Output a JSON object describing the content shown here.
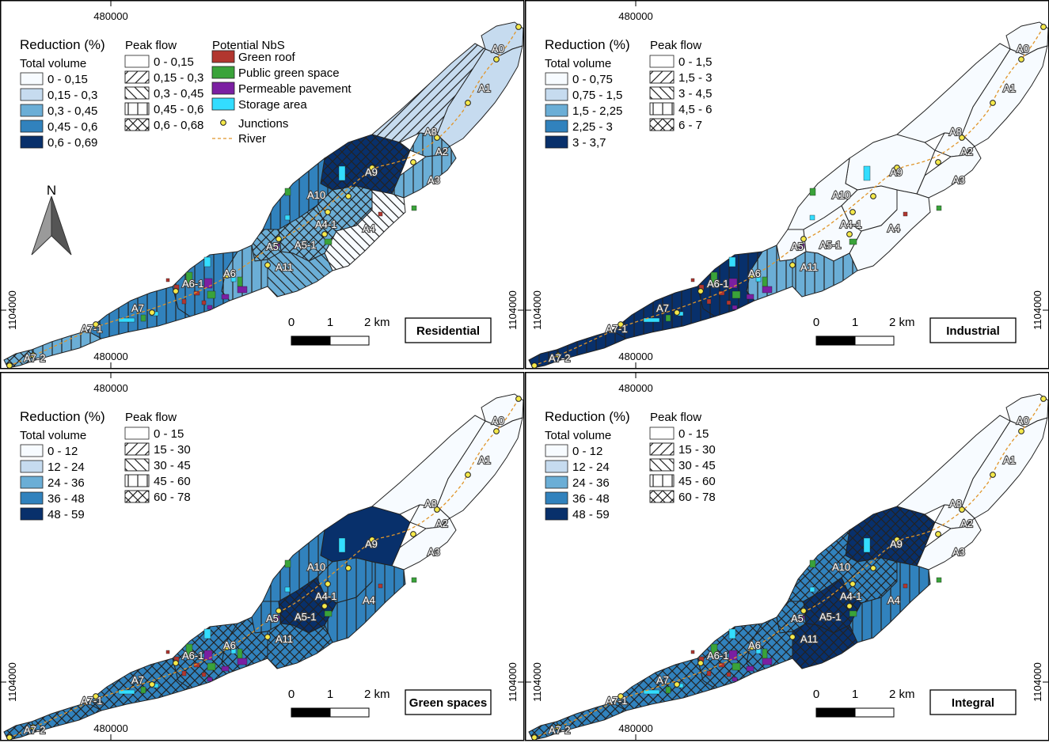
{
  "colors": {
    "class1": "#f7fbff",
    "class2": "#c6dbef",
    "class3": "#6baed6",
    "class4": "#3182bd",
    "class5": "#08306b",
    "green_roof": "#b2362f",
    "public_green": "#3aa33a",
    "permeable": "#7b1fa2",
    "storage": "#33ddff",
    "junction": "#f5e94a",
    "river": "#e0952a"
  },
  "common": {
    "reduction_title": "Reduction (%)",
    "total_volume_title": "Total volume",
    "peak_flow_title": "Peak flow",
    "nbs_title": "Potential NbS",
    "nbs_items": [
      "Green roof",
      "Public green space",
      "Permeable pavement",
      "Storage area"
    ],
    "junctions_label": "Junctions",
    "river_label": "River",
    "scale_labels": [
      "0",
      "1",
      "2 km"
    ],
    "x_coord": "480000",
    "y_coord": "1104000",
    "north_label": "N"
  },
  "subbasin_labels": [
    "A0",
    "A1",
    "A8",
    "A2",
    "A3",
    "A9",
    "A10",
    "A4-1",
    "A4",
    "A5",
    "A5-1",
    "A11",
    "A6",
    "A6-1",
    "A7",
    "A7-1",
    "A7-2"
  ],
  "panels": [
    {
      "scenario": "Residential",
      "total_volume_classes": [
        "0 - 0,15",
        "0,15 - 0,3",
        "0,3 - 0,45",
        "0,45 - 0,6",
        "0,6 - 0,69"
      ],
      "peak_flow_classes": [
        "0 - 0,15",
        "0,15 - 0,3",
        "0,3 - 0,45",
        "0,45 - 0,6",
        "0,6 - 0,68"
      ],
      "subbasins": {
        "A0": {
          "vol": 2,
          "peak": 1
        },
        "A1": {
          "vol": 2,
          "peak": 1
        },
        "A8": {
          "vol": 2,
          "peak": 2
        },
        "A2": {
          "vol": 3,
          "peak": 4
        },
        "A3": {
          "vol": 3,
          "peak": 4
        },
        "A9": {
          "vol": 5,
          "peak": 5
        },
        "A10": {
          "vol": 4,
          "peak": 4
        },
        "A4-1": {
          "vol": 3,
          "peak": 5
        },
        "A4": {
          "vol": 1,
          "peak": 3
        },
        "A5": {
          "vol": 3,
          "peak": 5
        },
        "A5-1": {
          "vol": 3,
          "peak": 5
        },
        "A11": {
          "vol": 3,
          "peak": 3
        },
        "A6": {
          "vol": 3,
          "peak": 4
        },
        "A6-1": {
          "vol": 4,
          "peak": 4
        },
        "A7": {
          "vol": 4,
          "peak": 4
        },
        "A7-1": {
          "vol": 3,
          "peak": 4
        },
        "A7-2": {
          "vol": 3,
          "peak": 5
        }
      }
    },
    {
      "scenario": "Industrial",
      "total_volume_classes": [
        "0 - 0,75",
        "0,75 - 1,5",
        "1,5 - 2,25",
        "2,25 - 3",
        "3 - 3,7"
      ],
      "peak_flow_classes": [
        "0 - 1,5",
        "1,5 - 3",
        "3 - 4,5",
        "4,5 - 6",
        "6 - 7"
      ],
      "subbasins": {
        "A0": {
          "vol": 1,
          "peak": 1
        },
        "A1": {
          "vol": 1,
          "peak": 1
        },
        "A8": {
          "vol": 1,
          "peak": 1
        },
        "A2": {
          "vol": 1,
          "peak": 1
        },
        "A3": {
          "vol": 1,
          "peak": 1
        },
        "A9": {
          "vol": 1,
          "peak": 1
        },
        "A10": {
          "vol": 1,
          "peak": 1
        },
        "A4-1": {
          "vol": 1,
          "peak": 1
        },
        "A4": {
          "vol": 1,
          "peak": 1
        },
        "A5": {
          "vol": 1,
          "peak": 1
        },
        "A5-1": {
          "vol": 1,
          "peak": 1
        },
        "A11": {
          "vol": 3,
          "peak": 4
        },
        "A6": {
          "vol": 3,
          "peak": 4
        },
        "A6-1": {
          "vol": 5,
          "peak": 4
        },
        "A7": {
          "vol": 5,
          "peak": 4
        },
        "A7-1": {
          "vol": 5,
          "peak": 4
        },
        "A7-2": {
          "vol": 5,
          "peak": 4
        }
      }
    },
    {
      "scenario": "Green spaces",
      "total_volume_classes": [
        "0 - 12",
        "12 - 24",
        "24 - 36",
        "36 - 48",
        "48 - 59"
      ],
      "peak_flow_classes": [
        "0 - 15",
        "15 - 30",
        "30 - 45",
        "45 - 60",
        "60 - 78"
      ],
      "subbasins": {
        "A0": {
          "vol": 1,
          "peak": 1
        },
        "A1": {
          "vol": 1,
          "peak": 1
        },
        "A8": {
          "vol": 1,
          "peak": 1
        },
        "A2": {
          "vol": 1,
          "peak": 1
        },
        "A3": {
          "vol": 1,
          "peak": 1
        },
        "A9": {
          "vol": 5,
          "peak": 1
        },
        "A10": {
          "vol": 4,
          "peak": 4
        },
        "A4-1": {
          "vol": 4,
          "peak": 4
        },
        "A4": {
          "vol": 4,
          "peak": 4
        },
        "A5": {
          "vol": 4,
          "peak": 4
        },
        "A5-1": {
          "vol": 5,
          "peak": 5
        },
        "A11": {
          "vol": 4,
          "peak": 5
        },
        "A6": {
          "vol": 4,
          "peak": 5
        },
        "A6-1": {
          "vol": 4,
          "peak": 5
        },
        "A7": {
          "vol": 4,
          "peak": 5
        },
        "A7-1": {
          "vol": 4,
          "peak": 5
        },
        "A7-2": {
          "vol": 4,
          "peak": 5
        }
      }
    },
    {
      "scenario": "Integral",
      "total_volume_classes": [
        "0 - 12",
        "12 - 24",
        "24 - 36",
        "36 - 48",
        "48 - 59"
      ],
      "peak_flow_classes": [
        "0 - 15",
        "15 - 30",
        "30 - 45",
        "45 - 60",
        "60 - 78"
      ],
      "subbasins": {
        "A0": {
          "vol": 1,
          "peak": 1
        },
        "A1": {
          "vol": 1,
          "peak": 1
        },
        "A8": {
          "vol": 1,
          "peak": 1
        },
        "A2": {
          "vol": 1,
          "peak": 1
        },
        "A3": {
          "vol": 1,
          "peak": 1
        },
        "A9": {
          "vol": 5,
          "peak": 5
        },
        "A10": {
          "vol": 4,
          "peak": 5
        },
        "A4-1": {
          "vol": 4,
          "peak": 5
        },
        "A4": {
          "vol": 4,
          "peak": 4
        },
        "A5": {
          "vol": 4,
          "peak": 5
        },
        "A5-1": {
          "vol": 5,
          "peak": 5
        },
        "A11": {
          "vol": 5,
          "peak": 5
        },
        "A6": {
          "vol": 4,
          "peak": 5
        },
        "A6-1": {
          "vol": 4,
          "peak": 5
        },
        "A7": {
          "vol": 4,
          "peak": 5
        },
        "A7-1": {
          "vol": 4,
          "peak": 5
        },
        "A7-2": {
          "vol": 4,
          "peak": 5
        }
      }
    }
  ]
}
